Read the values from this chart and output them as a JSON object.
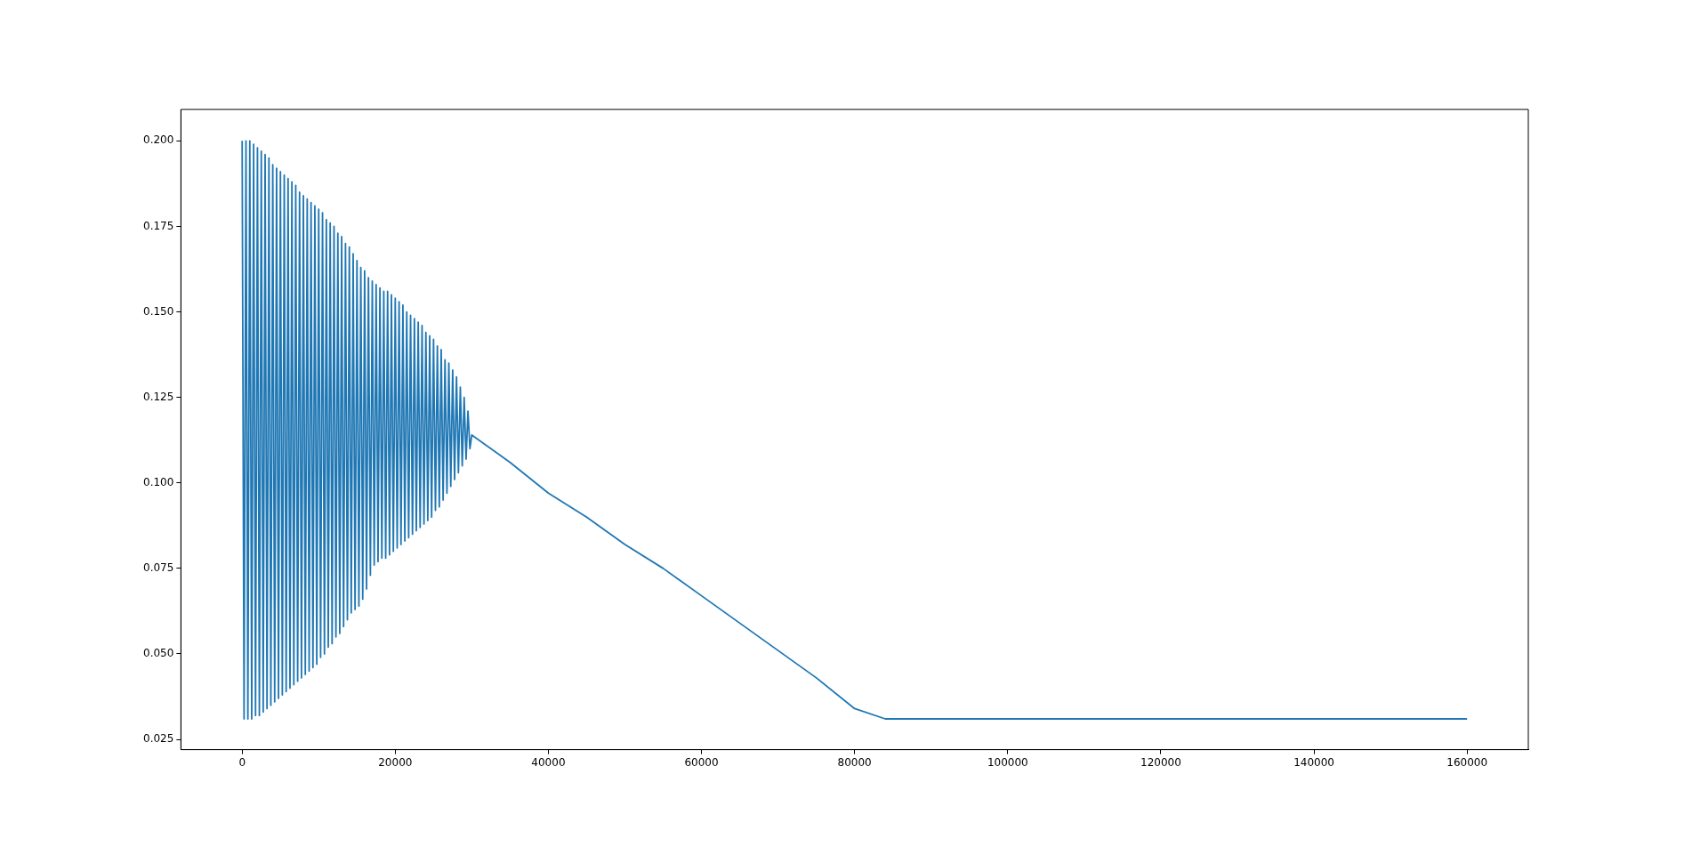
{
  "chart_data": {
    "type": "line",
    "xlim": [
      -8000,
      168000
    ],
    "ylim": [
      0.022,
      0.2092
    ],
    "xticks": [
      0,
      20000,
      40000,
      60000,
      80000,
      100000,
      120000,
      140000,
      160000
    ],
    "yticks": [
      {
        "value": 0.025,
        "label": "0.025"
      },
      {
        "value": 0.05,
        "label": "0.050"
      },
      {
        "value": 0.075,
        "label": "0.075"
      },
      {
        "value": 0.1,
        "label": "0.100"
      },
      {
        "value": 0.125,
        "label": "0.125"
      },
      {
        "value": 0.15,
        "label": "0.150"
      },
      {
        "value": 0.175,
        "label": "0.175"
      },
      {
        "value": 0.2,
        "label": "0.200"
      }
    ],
    "grid": false,
    "legend": false,
    "marker": "none",
    "line_style": "solid",
    "series": [
      {
        "color": "#1f77b4",
        "x": [
          0,
          250,
          500,
          750,
          1000,
          1250,
          1500,
          1750,
          2000,
          2250,
          2500,
          2750,
          3000,
          3250,
          3500,
          3750,
          4000,
          4250,
          4500,
          4750,
          5000,
          5250,
          5500,
          5750,
          6000,
          6250,
          6500,
          6750,
          7000,
          7250,
          7500,
          7750,
          8000,
          8250,
          8500,
          8750,
          9000,
          9250,
          9500,
          9750,
          10000,
          10250,
          10500,
          10750,
          11000,
          11250,
          11500,
          11750,
          12000,
          12250,
          12500,
          12750,
          13000,
          13250,
          13500,
          13750,
          14000,
          14250,
          14500,
          14750,
          15000,
          15250,
          15500,
          15750,
          16000,
          16250,
          16500,
          16750,
          17000,
          17250,
          17500,
          17750,
          18000,
          18250,
          18500,
          18750,
          19000,
          19250,
          19500,
          19750,
          20000,
          20250,
          20500,
          20750,
          21000,
          21250,
          21500,
          21750,
          22000,
          22250,
          22500,
          22750,
          23000,
          23250,
          23500,
          23750,
          24000,
          24250,
          24500,
          24750,
          25000,
          25250,
          25500,
          25750,
          26000,
          26250,
          26500,
          26750,
          27000,
          27250,
          27500,
          27750,
          28000,
          28250,
          28500,
          28750,
          29000,
          29250,
          29500,
          29750,
          30000,
          35000,
          40000,
          45000,
          50000,
          55000,
          60000,
          65000,
          70000,
          75000,
          80000,
          84000,
          90000,
          160000
        ],
        "values": [
          0.2,
          0.031,
          0.2,
          0.031,
          0.2,
          0.031,
          0.199,
          0.032,
          0.198,
          0.032,
          0.197,
          0.033,
          0.196,
          0.034,
          0.195,
          0.035,
          0.193,
          0.036,
          0.192,
          0.037,
          0.191,
          0.038,
          0.19,
          0.039,
          0.189,
          0.04,
          0.188,
          0.041,
          0.187,
          0.042,
          0.185,
          0.043,
          0.184,
          0.044,
          0.183,
          0.045,
          0.182,
          0.046,
          0.181,
          0.047,
          0.18,
          0.049,
          0.179,
          0.05,
          0.177,
          0.052,
          0.176,
          0.053,
          0.175,
          0.055,
          0.173,
          0.056,
          0.172,
          0.058,
          0.17,
          0.06,
          0.169,
          0.062,
          0.167,
          0.063,
          0.165,
          0.064,
          0.163,
          0.066,
          0.162,
          0.069,
          0.16,
          0.073,
          0.159,
          0.076,
          0.158,
          0.077,
          0.157,
          0.078,
          0.156,
          0.078,
          0.156,
          0.079,
          0.155,
          0.08,
          0.154,
          0.081,
          0.153,
          0.082,
          0.152,
          0.083,
          0.15,
          0.084,
          0.149,
          0.085,
          0.148,
          0.086,
          0.147,
          0.087,
          0.146,
          0.088,
          0.144,
          0.089,
          0.143,
          0.09,
          0.142,
          0.092,
          0.14,
          0.093,
          0.139,
          0.095,
          0.136,
          0.097,
          0.135,
          0.099,
          0.133,
          0.101,
          0.131,
          0.103,
          0.128,
          0.105,
          0.125,
          0.107,
          0.121,
          0.11,
          0.114,
          0.106,
          0.097,
          0.09,
          0.082,
          0.075,
          0.067,
          0.059,
          0.051,
          0.043,
          0.034,
          0.031,
          0.031,
          0.031
        ]
      }
    ]
  }
}
